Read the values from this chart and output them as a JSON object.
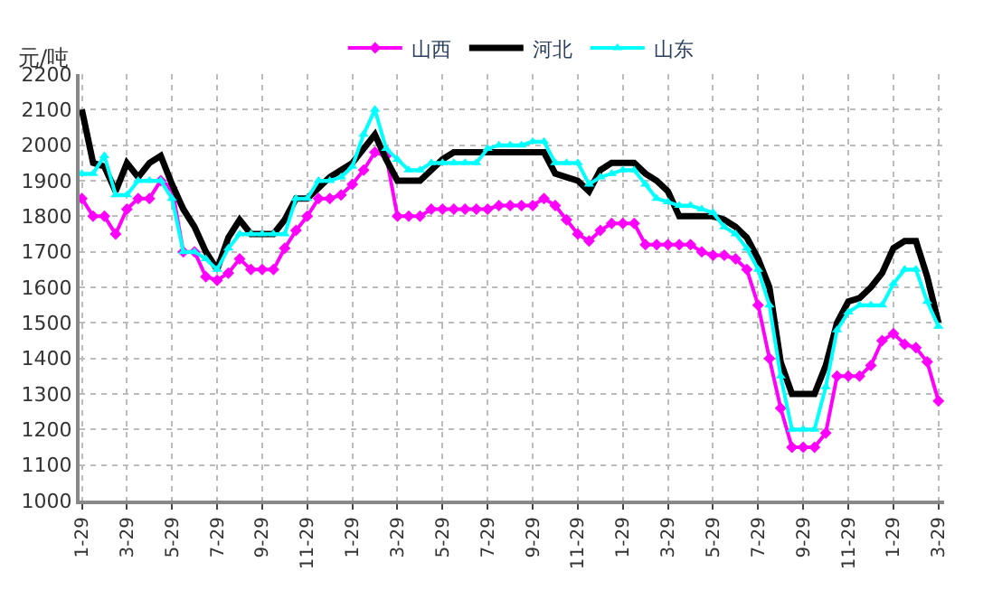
{
  "chart_data": {
    "type": "line",
    "ylabel": "元/吨",
    "legend": "top",
    "grid": true,
    "line_style": "solid",
    "ylim": [
      1000,
      2200
    ],
    "yticks": [
      1000,
      1100,
      1200,
      1300,
      1400,
      1500,
      1600,
      1700,
      1800,
      1900,
      2000,
      2100,
      2200
    ],
    "categories": [
      "1-29",
      null,
      null,
      null,
      "3-29",
      null,
      null,
      null,
      "5-29",
      null,
      null,
      null,
      "7-29",
      null,
      null,
      null,
      "9-29",
      null,
      null,
      null,
      "11-29",
      null,
      null,
      null,
      "1-29",
      null,
      null,
      null,
      "3-29",
      null,
      null,
      null,
      "5-29",
      null,
      null,
      null,
      "7-29",
      null,
      null,
      null,
      "9-29",
      null,
      null,
      null,
      "11-29",
      null,
      null,
      null,
      "1-29",
      null,
      null,
      null,
      "3-29",
      null,
      null,
      null,
      "5-29",
      null,
      null,
      null,
      "7-29",
      null,
      null,
      null,
      "9-29",
      null,
      null,
      null,
      "11-29",
      null,
      null,
      null,
      "1-29",
      null,
      null,
      null,
      "3-29"
    ],
    "series": [
      {
        "name": "山西",
        "color": "#ff00ff",
        "marker": "diamond",
        "values": [
          1850,
          1800,
          1800,
          1750,
          1820,
          1850,
          1850,
          1900,
          1880,
          1700,
          1700,
          1630,
          1620,
          1640,
          1680,
          1650,
          1650,
          1650,
          1710,
          1760,
          1800,
          1850,
          1850,
          1860,
          1890,
          1930,
          1980,
          1970,
          1800,
          1800,
          1800,
          1820,
          1820,
          1820,
          1820,
          1820,
          1820,
          1830,
          1830,
          1830,
          1830,
          1850,
          1830,
          1790,
          1750,
          1730,
          1760,
          1780,
          1780,
          1780,
          1720,
          1720,
          1720,
          1720,
          1720,
          1700,
          1690,
          1690,
          1680,
          1650,
          1550,
          1400,
          1260,
          1150,
          1150,
          1150,
          1190,
          1350,
          1350,
          1350,
          1380,
          1450,
          1470,
          1440,
          1430,
          1390,
          1280
        ]
      },
      {
        "name": "河北",
        "color": "#000000",
        "marker": "none",
        "values": [
          2100,
          1950,
          1940,
          1870,
          1950,
          1910,
          1950,
          1970,
          1890,
          1820,
          1770,
          1700,
          1650,
          1740,
          1790,
          1750,
          1750,
          1750,
          1790,
          1850,
          1850,
          1880,
          1910,
          1930,
          1950,
          1990,
          2030,
          1960,
          1900,
          1900,
          1900,
          1930,
          1960,
          1980,
          1980,
          1980,
          1980,
          1980,
          1980,
          1980,
          1980,
          1980,
          1920,
          1910,
          1900,
          1870,
          1930,
          1950,
          1950,
          1950,
          1920,
          1900,
          1870,
          1800,
          1800,
          1800,
          1800,
          1790,
          1770,
          1740,
          1680,
          1600,
          1390,
          1300,
          1300,
          1300,
          1380,
          1500,
          1560,
          1570,
          1600,
          1640,
          1710,
          1730,
          1730,
          1630,
          1500
        ]
      },
      {
        "name": "山东",
        "color": "#00ffff",
        "marker": "triangle",
        "values": [
          1920,
          1920,
          1970,
          1860,
          1860,
          1900,
          1900,
          1900,
          1850,
          1700,
          1700,
          1680,
          1650,
          1710,
          1750,
          1750,
          1750,
          1750,
          1750,
          1850,
          1850,
          1900,
          1900,
          1910,
          1940,
          2030,
          2100,
          1990,
          1960,
          1930,
          1930,
          1950,
          1950,
          1950,
          1950,
          1950,
          1990,
          2000,
          2000,
          2000,
          2010,
          2010,
          1950,
          1950,
          1950,
          1890,
          1910,
          1920,
          1930,
          1930,
          1890,
          1850,
          1840,
          1830,
          1830,
          1820,
          1810,
          1770,
          1750,
          1710,
          1650,
          1550,
          1350,
          1200,
          1200,
          1200,
          1320,
          1480,
          1530,
          1550,
          1550,
          1550,
          1610,
          1650,
          1650,
          1560,
          1490
        ]
      }
    ]
  }
}
